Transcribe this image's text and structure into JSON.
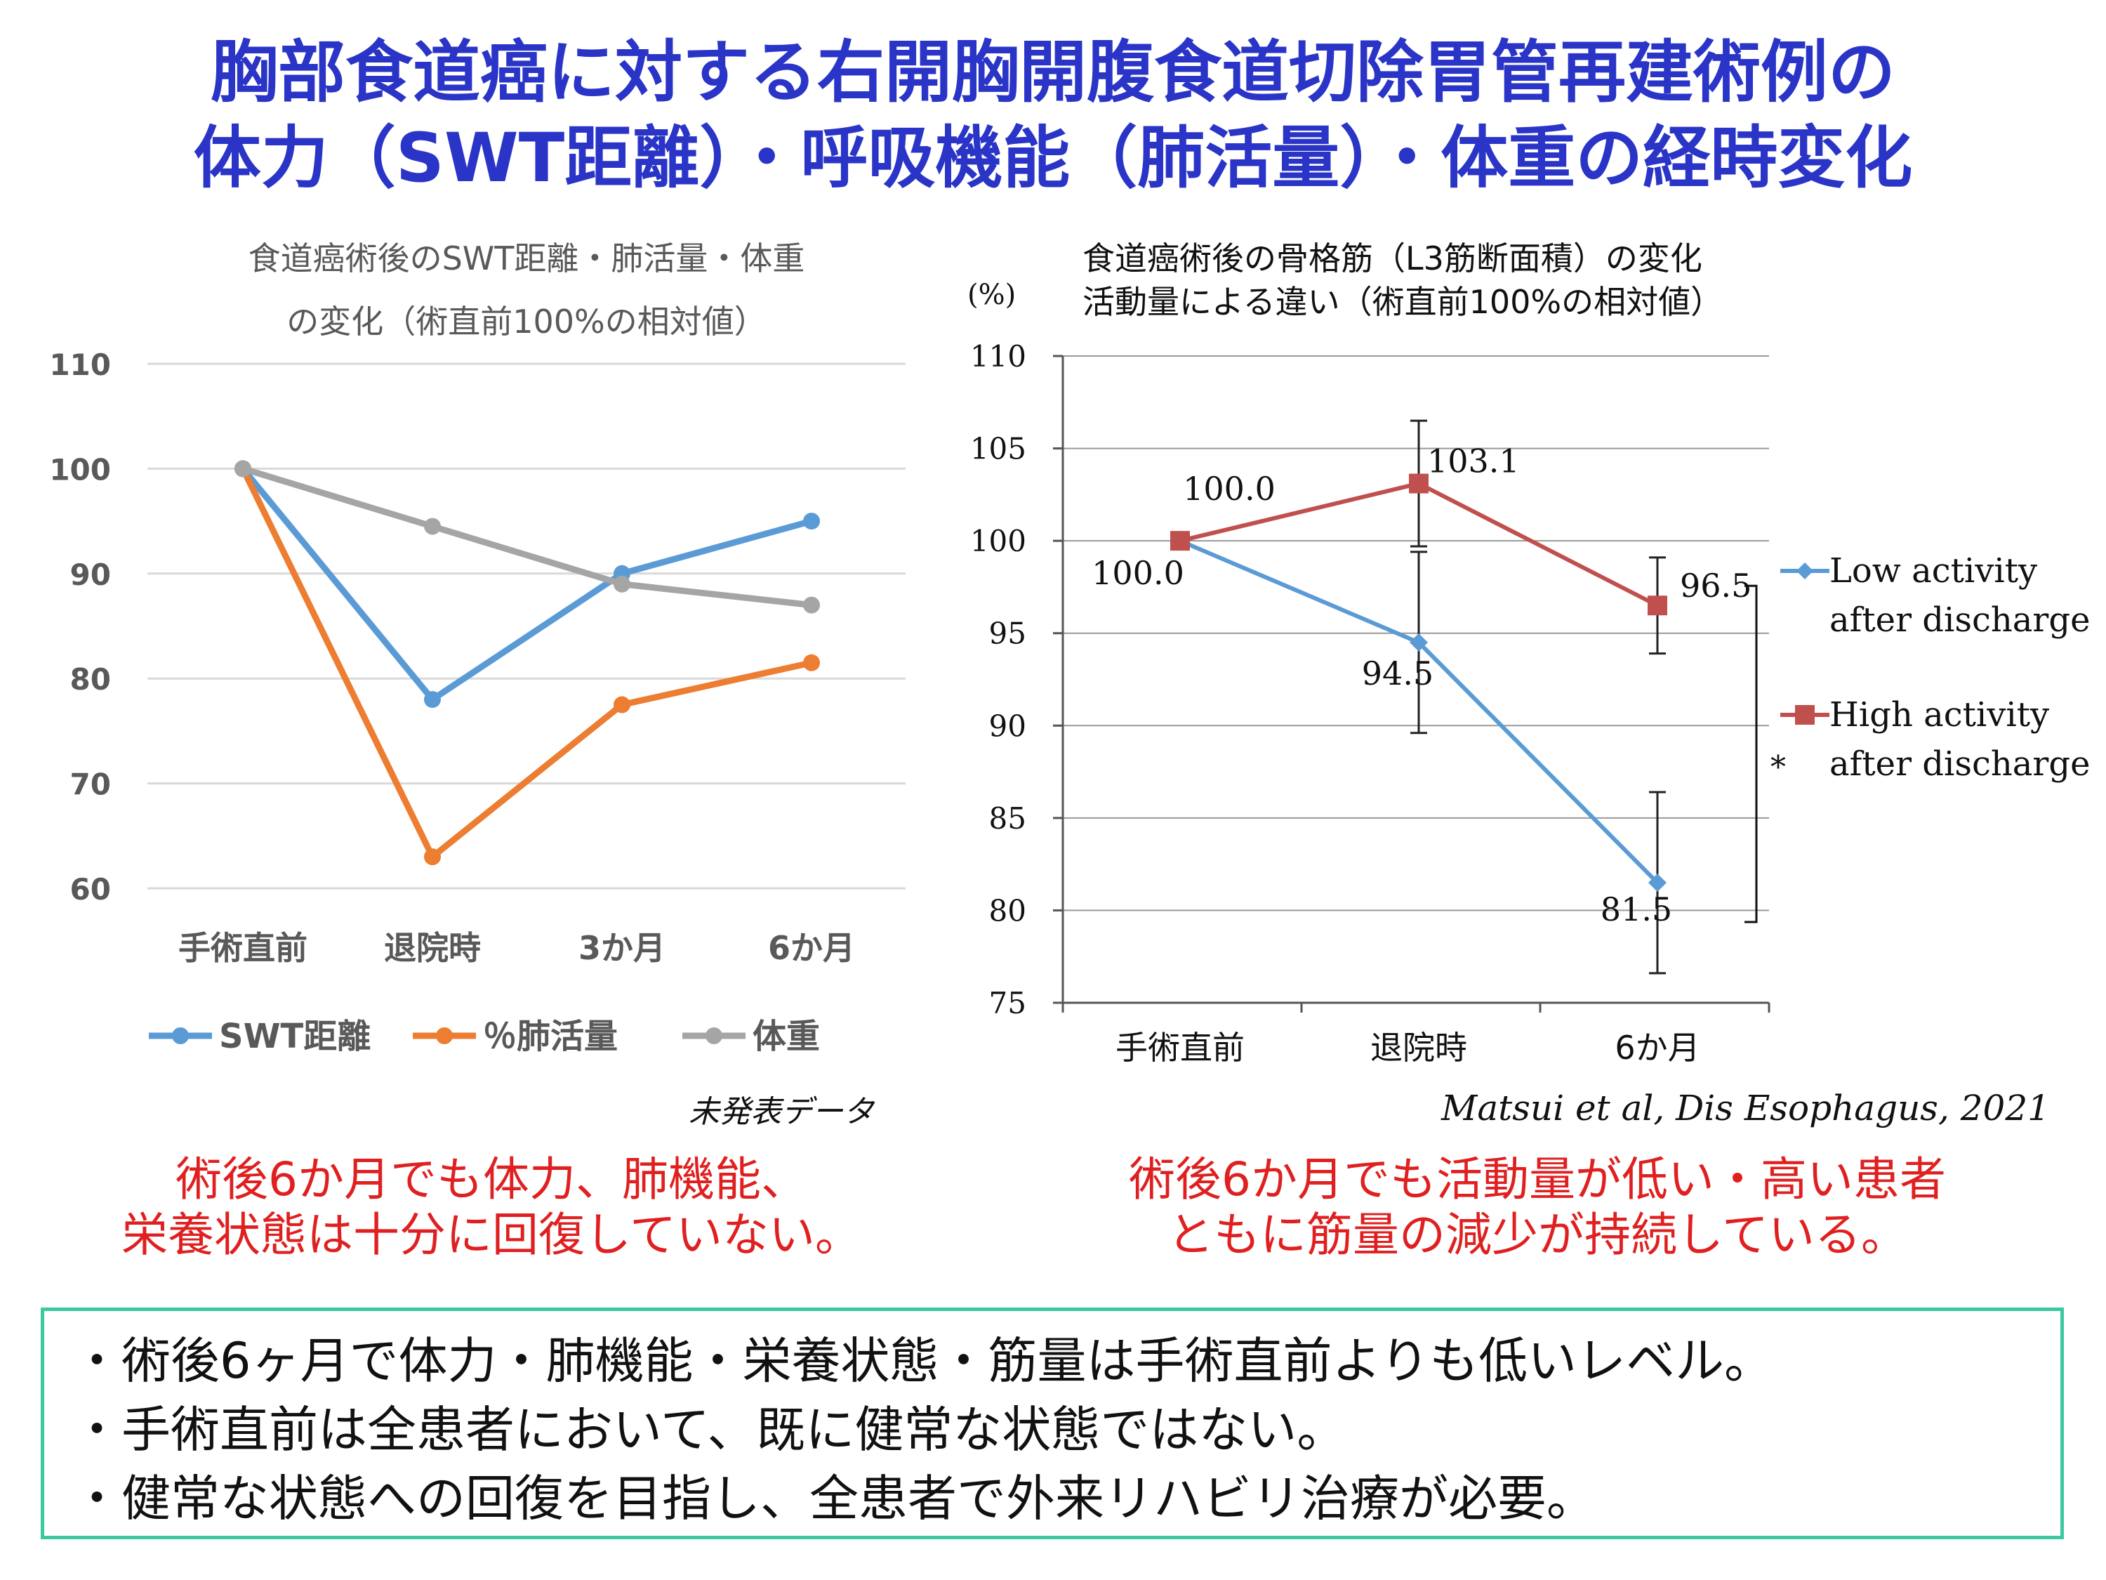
{
  "title": {
    "line1": "胸部食道癌に対する右開胸開腹食道切除胃管再建術例の",
    "line2": "体力（SWT距離）・呼吸機能（肺活量）・体重の経時変化"
  },
  "chart_data": [
    {
      "type": "line",
      "title": "食道癌術後のSWT距離・肺活量・体重",
      "subtitle": "の変化（術直前100%の相対値）",
      "categories": [
        "手術直前",
        "退院時",
        "3か月",
        "6か月"
      ],
      "ylim": [
        60,
        110
      ],
      "yticks": [
        60,
        70,
        80,
        90,
        100,
        110
      ],
      "grid": true,
      "legend_position": "bottom",
      "series": [
        {
          "name": "SWT距離",
          "values": [
            100,
            78,
            90,
            95
          ],
          "color": "#5b9bd5"
        },
        {
          "name": "％肺活量",
          "values": [
            100,
            63,
            77.5,
            81.5
          ],
          "color": "#ed7d31"
        },
        {
          "name": "体重",
          "values": [
            100,
            94.5,
            89,
            87
          ],
          "color": "#a5a5a5"
        }
      ],
      "source_note": "未発表データ"
    },
    {
      "type": "line",
      "title": "食道癌術後の骨格筋（L3筋断面積）の変化",
      "subtitle": "活動量による違い（術直前100%の相対値）",
      "ylabel": "(%)",
      "categories": [
        "手術直前",
        "退院時",
        "6か月"
      ],
      "ylim": [
        75,
        110
      ],
      "yticks": [
        75,
        80,
        85,
        90,
        95,
        100,
        105,
        110
      ],
      "grid": true,
      "legend_position": "right",
      "series": [
        {
          "name": "Low activity after discharge",
          "legend_lines": [
            "Low activity",
            "after discharge"
          ],
          "values": [
            100.0,
            94.5,
            81.5
          ],
          "labels": [
            "100.0",
            "94.5",
            "81.5"
          ],
          "error": [
            0,
            4.9,
            4.9
          ],
          "color": "#5b9bd5",
          "marker": "diamond"
        },
        {
          "name": "High activity after discharge",
          "legend_lines": [
            "High activity",
            "after discharge"
          ],
          "values": [
            100.0,
            103.1,
            96.5
          ],
          "labels": [
            "100.0",
            "103.1",
            "96.5"
          ],
          "error": [
            0,
            3.4,
            2.6
          ],
          "color": "#c0504d",
          "marker": "square"
        }
      ],
      "significance_marker": "*",
      "citation": "Matsui et al, Dis Esophagus, 2021"
    }
  ],
  "conclusions": {
    "left": [
      "術後6か月でも体力、肺機能、",
      "栄養状態は十分に回復していない。"
    ],
    "right": [
      "術後6か月でも活動量が低い・高い患者",
      "ともに筋量の減少が持続している。"
    ]
  },
  "summary": [
    "・術後6ヶ月で体力・肺機能・栄養状態・筋量は手術直前よりも低いレベル。",
    "・手術直前は全患者において、既に健常な状態ではない。",
    "・健常な状態への回復を目指し、全患者で外来リハビリ治療が必要。"
  ]
}
